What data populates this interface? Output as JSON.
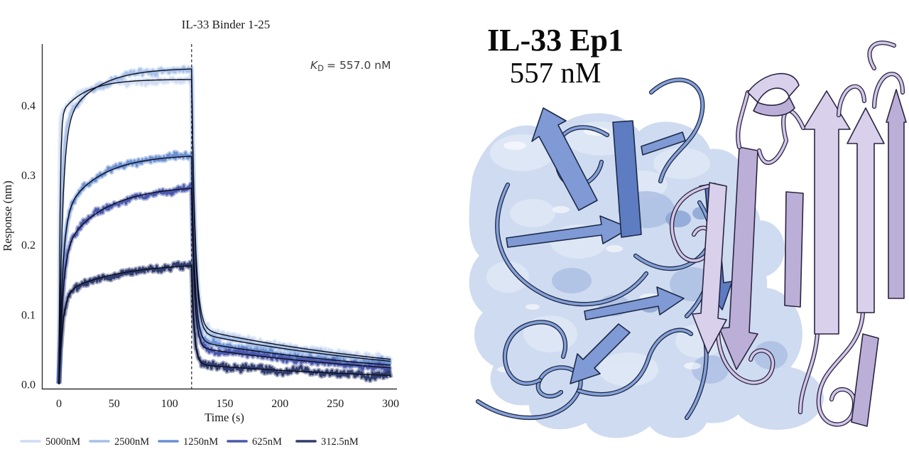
{
  "page": {
    "background": "#ffffff"
  },
  "chart_data": {
    "type": "line",
    "subtype": "bli-sensorgram",
    "title": "IL-33 Binder 1-25",
    "annotation": {
      "kd_symbol": "K",
      "kd_sub": "D",
      "kd_rest": "= 557.0 nM"
    },
    "xlabel": "Time (s)",
    "ylabel": "Response (nm)",
    "xlim": [
      -15,
      305
    ],
    "ylim": [
      0,
      0.49
    ],
    "x_ticks": [
      "0",
      "50",
      "100",
      "150",
      "200",
      "250",
      "300"
    ],
    "y_ticks": [
      "0.0",
      "0.1",
      "0.2",
      "0.3",
      "0.4"
    ],
    "grid": false,
    "legend_position": "bottom",
    "association_end_s": 120,
    "dissociation_end_s": 300,
    "fit_color": "#0d0d18",
    "series": [
      {
        "name": "5000nM",
        "conc_nM": 5000,
        "color": "#cfdcf3",
        "noise_nm": 0.0045,
        "plateau_nm": 0.437,
        "end_nm": 0.04,
        "assoc": {
          "k_fast": 1.0,
          "k_slow": 0.045,
          "frac_fast": 0.88,
          "data_k_fast": 2.0
        },
        "diss": {
          "k_fast": 0.3,
          "k_slow": 0.0045,
          "frac_slow": 0.185
        }
      },
      {
        "name": "2500nM",
        "conc_nM": 2500,
        "color": "#a6c0e9",
        "noise_nm": 0.0045,
        "plateau_nm": 0.452,
        "end_nm": 0.035,
        "assoc": {
          "k_fast": 0.32,
          "k_slow": 0.035,
          "frac_fast": 0.8,
          "data_k_fast": 0.45
        },
        "diss": {
          "k_fast": 0.33,
          "k_slow": 0.0045,
          "frac_slow": 0.165
        }
      },
      {
        "name": "1250nM",
        "conc_nM": 1250,
        "color": "#6b90d2",
        "noise_nm": 0.005,
        "plateau_nm": 0.327,
        "end_nm": 0.028,
        "assoc": {
          "k_fast": 0.3,
          "k_slow": 0.03,
          "frac_fast": 0.72
        },
        "diss": {
          "k_fast": 0.35,
          "k_slow": 0.0045,
          "frac_slow": 0.19
        }
      },
      {
        "name": "625nM",
        "conc_nM": 625,
        "color": "#4a58ac",
        "noise_nm": 0.005,
        "plateau_nm": 0.281,
        "end_nm": 0.024,
        "assoc": {
          "k_fast": 0.28,
          "k_slow": 0.026,
          "frac_fast": 0.66
        },
        "diss": {
          "k_fast": 0.38,
          "k_slow": 0.0045,
          "frac_slow": 0.19
        }
      },
      {
        "name": "312.5nM",
        "conc_nM": 312.5,
        "color": "#2f3c6e",
        "noise_nm": 0.0055,
        "plateau_nm": 0.17,
        "end_nm": 0.013,
        "assoc": {
          "k_fast": 0.3,
          "k_slow": 0.02,
          "frac_fast": 0.74
        },
        "diss": {
          "k_fast": 0.42,
          "k_slow": 0.0045,
          "frac_slow": 0.17
        }
      }
    ]
  },
  "structure_panel": {
    "title": "IL-33 Ep1",
    "subtitle": "557 nM",
    "colors": {
      "il33_surface": "#ccd8ef",
      "il33_cartoon": "#86a1d8",
      "binder_cartoon": "#d9d0ec",
      "outline": "#2a2440"
    }
  }
}
